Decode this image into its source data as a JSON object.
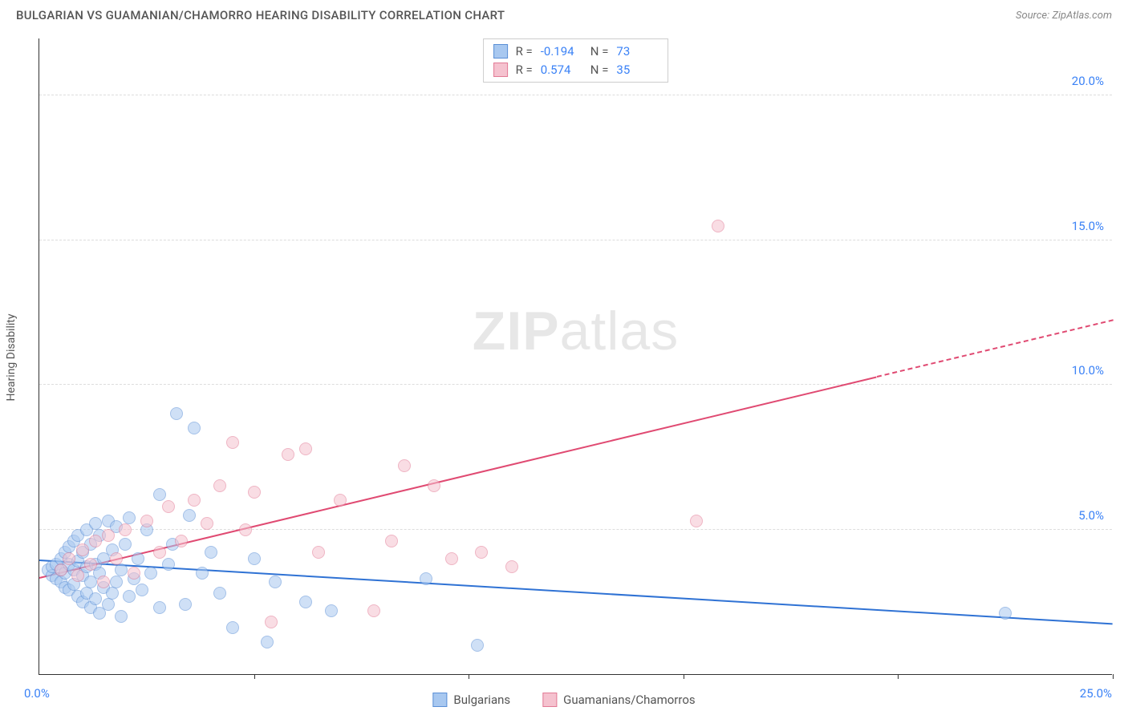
{
  "header": {
    "title": "BULGARIAN VS GUAMANIAN/CHAMORRO HEARING DISABILITY CORRELATION CHART",
    "source_prefix": "Source: ",
    "source": "ZipAtlas.com"
  },
  "watermark": {
    "zip": "ZIP",
    "atlas": "atlas"
  },
  "chart": {
    "type": "scatter",
    "xlim": [
      0,
      25
    ],
    "ylim": [
      0,
      22
    ],
    "x_ticks": [
      0,
      5,
      10,
      15,
      20,
      25
    ],
    "y_ticks": [
      5,
      10,
      15,
      20
    ],
    "y_tick_labels": [
      "5.0%",
      "10.0%",
      "15.0%",
      "20.0%"
    ],
    "x_origin_label": "0.0%",
    "x_max_label": "25.0%",
    "yaxis_title": "Hearing Disability",
    "grid_color": "#dddddd",
    "axis_color": "#333333",
    "background": "#ffffff",
    "point_radius": 8,
    "point_opacity": 0.55,
    "series": [
      {
        "name": "Bulgarians",
        "fill": "#a8c8f0",
        "stroke": "#5b8fd6",
        "R": "-0.194",
        "N": "73",
        "trend": {
          "y_at_x0": 3.9,
          "y_at_x25": 1.7,
          "solid_to_x": 25,
          "color": "#2f72d4"
        },
        "points": [
          [
            0.2,
            3.6
          ],
          [
            0.3,
            3.4
          ],
          [
            0.3,
            3.7
          ],
          [
            0.4,
            3.3
          ],
          [
            0.4,
            3.8
          ],
          [
            0.5,
            3.2
          ],
          [
            0.5,
            3.6
          ],
          [
            0.5,
            4.0
          ],
          [
            0.6,
            3.0
          ],
          [
            0.6,
            3.5
          ],
          [
            0.6,
            4.2
          ],
          [
            0.7,
            2.9
          ],
          [
            0.7,
            3.8
          ],
          [
            0.7,
            4.4
          ],
          [
            0.8,
            3.1
          ],
          [
            0.8,
            3.6
          ],
          [
            0.8,
            4.6
          ],
          [
            0.9,
            2.7
          ],
          [
            0.9,
            3.9
          ],
          [
            0.9,
            4.8
          ],
          [
            1.0,
            2.5
          ],
          [
            1.0,
            3.4
          ],
          [
            1.0,
            4.2
          ],
          [
            1.1,
            2.8
          ],
          [
            1.1,
            3.7
          ],
          [
            1.1,
            5.0
          ],
          [
            1.2,
            2.3
          ],
          [
            1.2,
            3.2
          ],
          [
            1.2,
            4.5
          ],
          [
            1.3,
            2.6
          ],
          [
            1.3,
            3.8
          ],
          [
            1.3,
            5.2
          ],
          [
            1.4,
            2.1
          ],
          [
            1.4,
            3.5
          ],
          [
            1.4,
            4.8
          ],
          [
            1.5,
            3.0
          ],
          [
            1.5,
            4.0
          ],
          [
            1.6,
            2.4
          ],
          [
            1.6,
            5.3
          ],
          [
            1.7,
            2.8
          ],
          [
            1.7,
            4.3
          ],
          [
            1.8,
            3.2
          ],
          [
            1.8,
            5.1
          ],
          [
            1.9,
            2.0
          ],
          [
            1.9,
            3.6
          ],
          [
            2.0,
            4.5
          ],
          [
            2.1,
            2.7
          ],
          [
            2.1,
            5.4
          ],
          [
            2.2,
            3.3
          ],
          [
            2.3,
            4.0
          ],
          [
            2.4,
            2.9
          ],
          [
            2.5,
            5.0
          ],
          [
            2.6,
            3.5
          ],
          [
            2.8,
            2.3
          ],
          [
            2.8,
            6.2
          ],
          [
            3.0,
            3.8
          ],
          [
            3.1,
            4.5
          ],
          [
            3.2,
            9.0
          ],
          [
            3.4,
            2.4
          ],
          [
            3.5,
            5.5
          ],
          [
            3.6,
            8.5
          ],
          [
            3.8,
            3.5
          ],
          [
            4.0,
            4.2
          ],
          [
            4.2,
            2.8
          ],
          [
            4.5,
            1.6
          ],
          [
            5.0,
            4.0
          ],
          [
            5.3,
            1.1
          ],
          [
            5.5,
            3.2
          ],
          [
            6.2,
            2.5
          ],
          [
            6.8,
            2.2
          ],
          [
            9.0,
            3.3
          ],
          [
            10.2,
            1.0
          ],
          [
            22.5,
            2.1
          ]
        ]
      },
      {
        "name": "Guamanians/Chamorros",
        "fill": "#f5c2cf",
        "stroke": "#e27a95",
        "R": "0.574",
        "N": "35",
        "trend": {
          "y_at_x0": 3.3,
          "y_at_x25": 12.2,
          "solid_to_x": 19.5,
          "color": "#e04a72"
        },
        "points": [
          [
            0.5,
            3.6
          ],
          [
            0.7,
            4.0
          ],
          [
            0.9,
            3.4
          ],
          [
            1.0,
            4.3
          ],
          [
            1.2,
            3.8
          ],
          [
            1.3,
            4.6
          ],
          [
            1.5,
            3.2
          ],
          [
            1.6,
            4.8
          ],
          [
            1.8,
            4.0
          ],
          [
            2.0,
            5.0
          ],
          [
            2.2,
            3.5
          ],
          [
            2.5,
            5.3
          ],
          [
            2.8,
            4.2
          ],
          [
            3.0,
            5.8
          ],
          [
            3.3,
            4.6
          ],
          [
            3.6,
            6.0
          ],
          [
            3.9,
            5.2
          ],
          [
            4.2,
            6.5
          ],
          [
            4.5,
            8.0
          ],
          [
            4.8,
            5.0
          ],
          [
            5.0,
            6.3
          ],
          [
            5.4,
            1.8
          ],
          [
            5.8,
            7.6
          ],
          [
            6.2,
            7.8
          ],
          [
            6.5,
            4.2
          ],
          [
            7.0,
            6.0
          ],
          [
            7.8,
            2.2
          ],
          [
            8.2,
            4.6
          ],
          [
            8.5,
            7.2
          ],
          [
            9.2,
            6.5
          ],
          [
            9.6,
            4.0
          ],
          [
            10.3,
            4.2
          ],
          [
            11.0,
            3.7
          ],
          [
            15.3,
            5.3
          ],
          [
            15.8,
            15.5
          ]
        ]
      }
    ]
  },
  "legend_stats": {
    "r_label": "R =",
    "n_label": "N ="
  },
  "bottom_legend": {
    "items": [
      "Bulgarians",
      "Guamanians/Chamorros"
    ]
  }
}
